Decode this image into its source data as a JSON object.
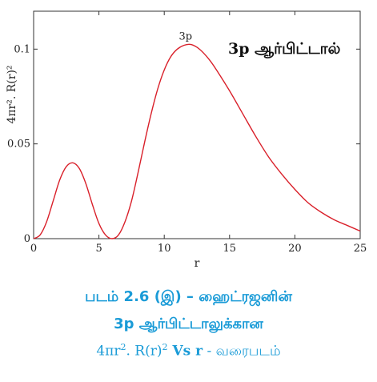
{
  "chart_data": {
    "type": "line",
    "title": "3p ஆர்பிட்டால்",
    "annotation": "3p",
    "xlabel": "r",
    "ylabel": "4πr². R(r)²",
    "xlim": [
      0,
      25
    ],
    "ylim": [
      0,
      0.12
    ],
    "x_ticks": [
      "0",
      "5",
      "10",
      "15",
      "20",
      "25"
    ],
    "y_ticks": [
      "0",
      "0.05",
      "0.1"
    ],
    "line_color": "#d9202a",
    "grid": false,
    "series": [
      {
        "x": [
          0,
          0.5,
          1,
          1.5,
          2,
          2.5,
          3,
          3.5,
          4,
          4.5,
          5,
          5.5,
          6,
          6.5,
          7,
          7.5,
          8,
          8.5,
          9,
          9.5,
          10,
          10.5,
          11,
          11.5,
          12,
          12.5,
          13,
          13.5,
          14,
          15,
          16,
          17,
          18,
          19,
          20,
          21,
          22,
          23,
          24,
          25
        ],
        "y": [
          0,
          0.002,
          0.009,
          0.02,
          0.031,
          0.038,
          0.04,
          0.037,
          0.029,
          0.018,
          0.008,
          0.002,
          0.0,
          0.002,
          0.009,
          0.02,
          0.035,
          0.051,
          0.066,
          0.079,
          0.089,
          0.096,
          0.1,
          0.102,
          0.1025,
          0.101,
          0.098,
          0.094,
          0.089,
          0.078,
          0.066,
          0.054,
          0.043,
          0.034,
          0.026,
          0.019,
          0.014,
          0.01,
          0.007,
          0.004
        ]
      }
    ]
  },
  "caption": {
    "line1": "படம் 2.6 (இ) – ஹைட்ரஜனின்",
    "line2": "3p ஆர்பிட்டாலுக்கான",
    "line3_pre": "4πr",
    "line3_sup1": "2",
    "line3_mid": ". R(r)",
    "line3_sup2": "2",
    "line3_vs": " Vs r",
    "line3_post": " - வரைபடம்"
  }
}
